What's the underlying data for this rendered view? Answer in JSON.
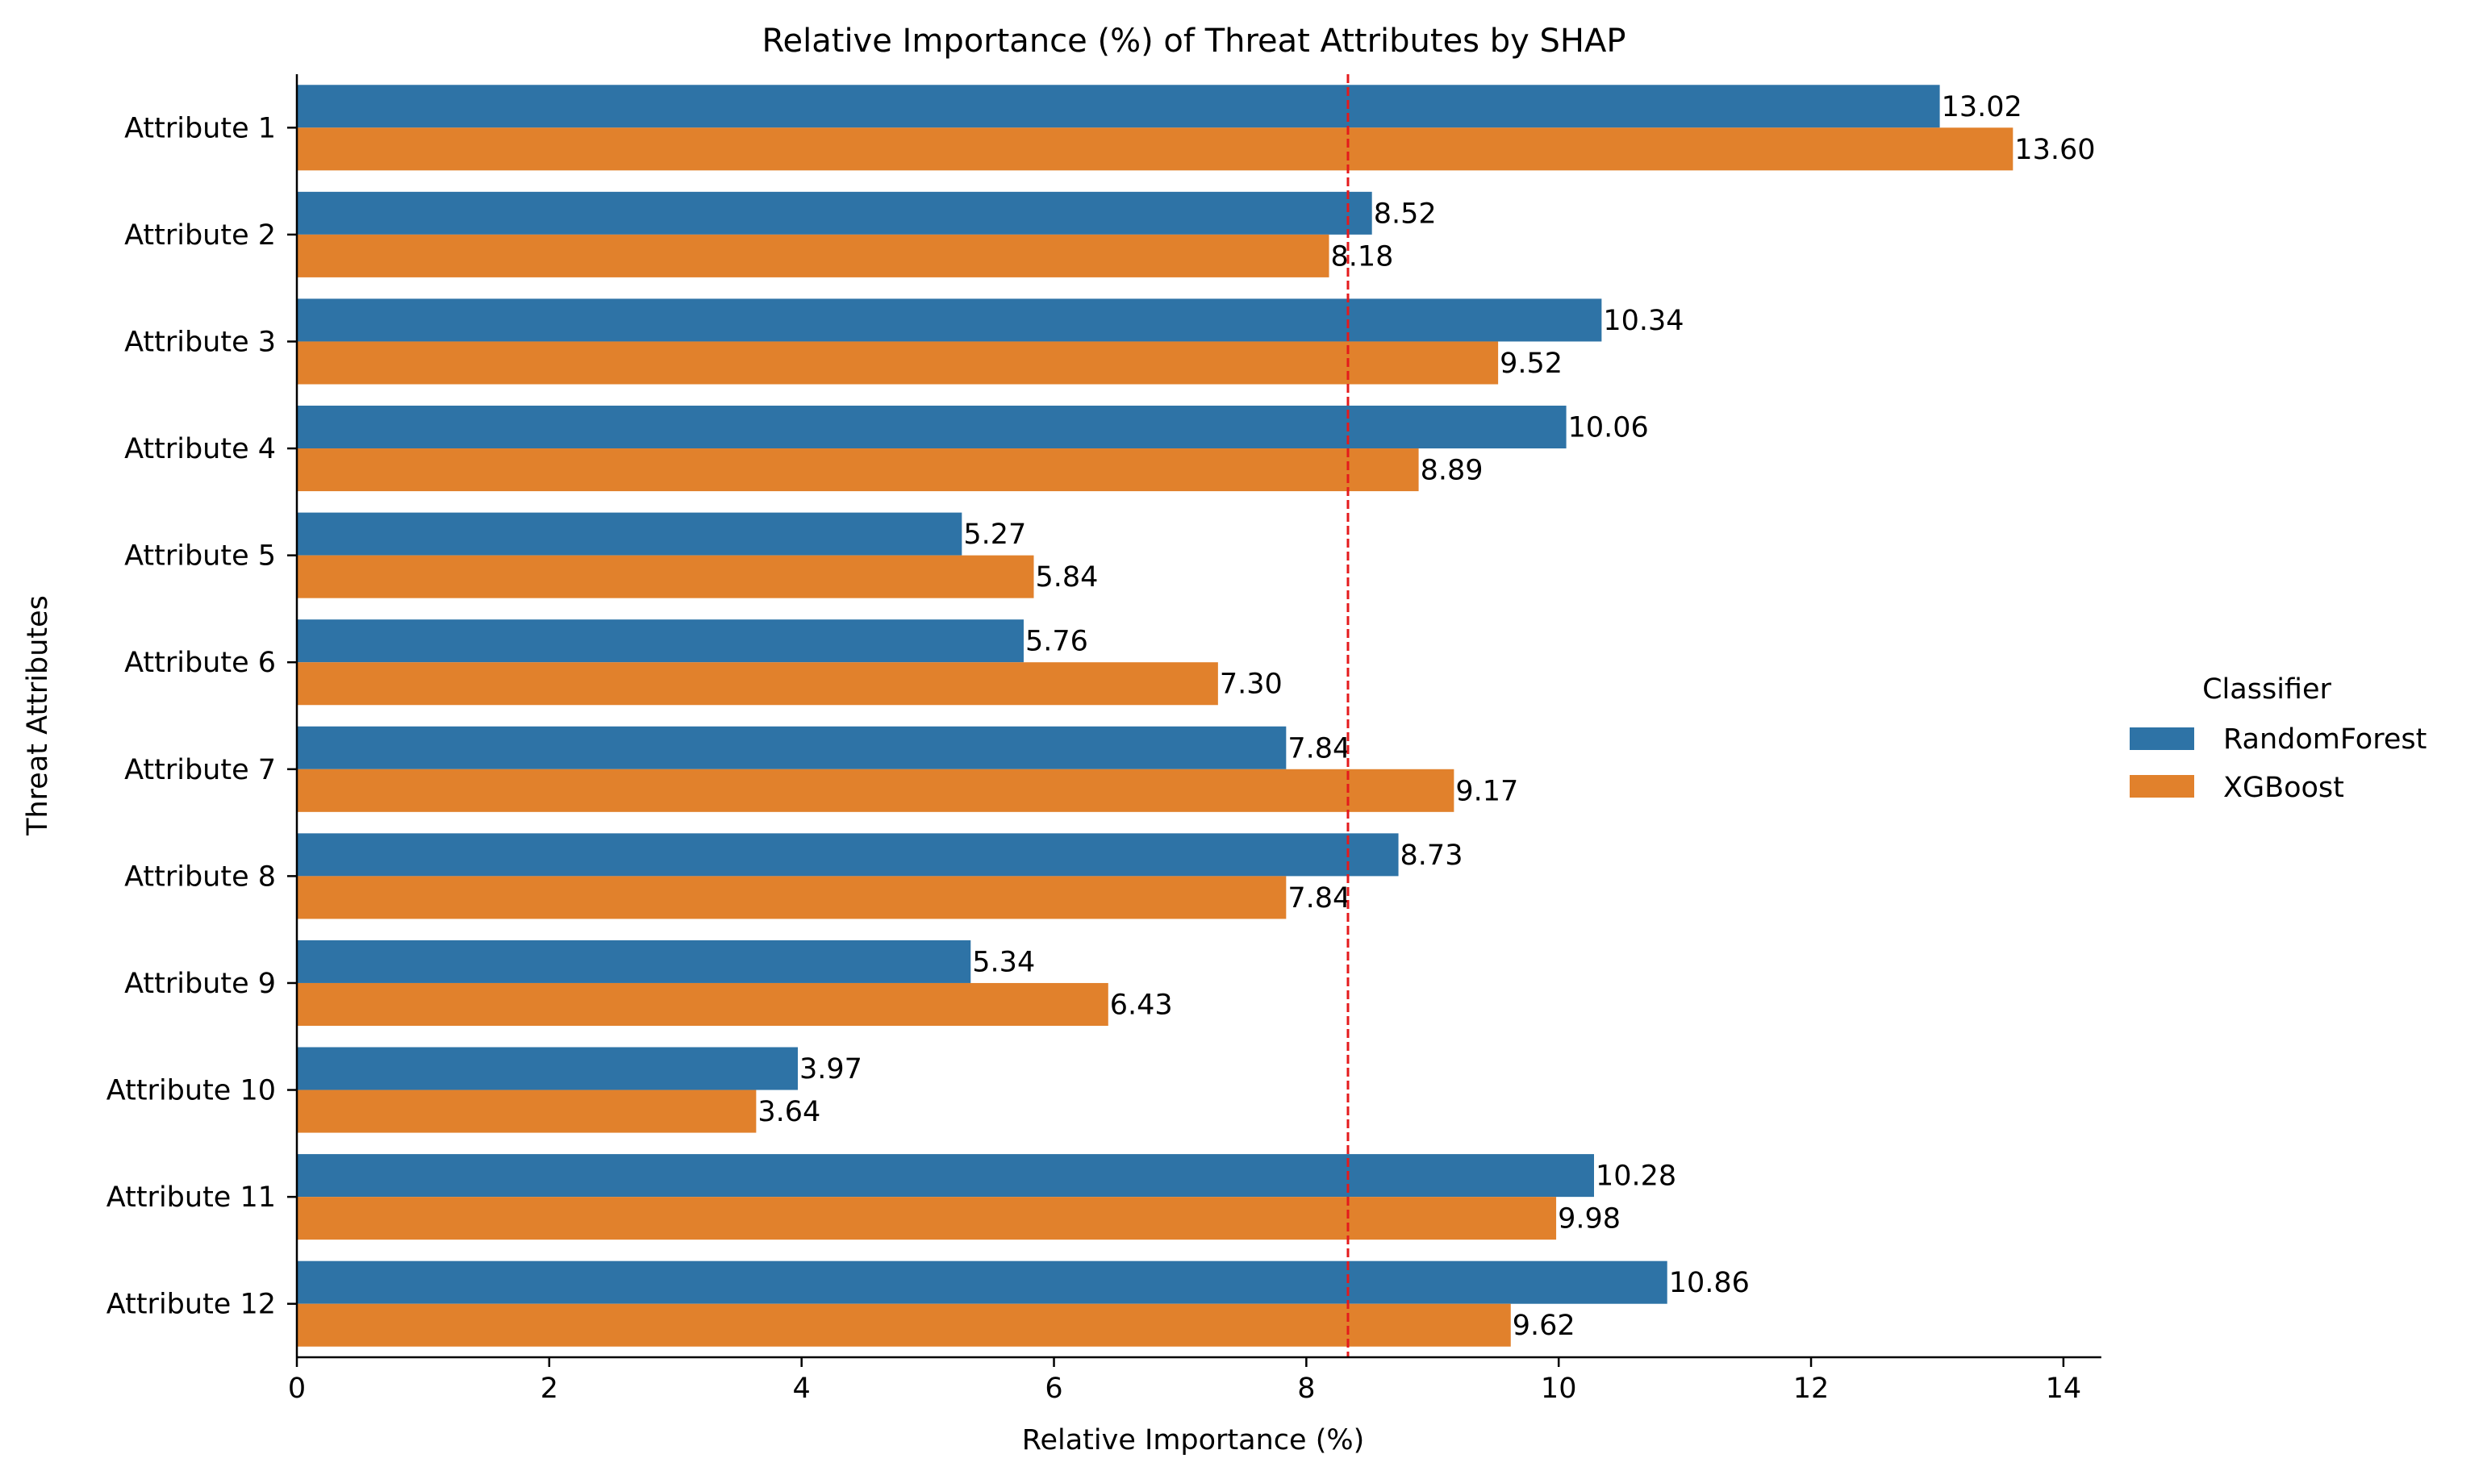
{
  "chart_data": {
    "type": "bar",
    "orientation": "horizontal",
    "title": "Relative Importance (%) of Threat Attributes by SHAP",
    "xlabel": "Relative Importance (%)",
    "ylabel": "Threat Attributes",
    "xlim": [
      0,
      14.3
    ],
    "xticks": [
      0,
      2,
      4,
      6,
      8,
      10,
      12,
      14
    ],
    "grid": false,
    "categories": [
      "Attribute 1",
      "Attribute 2",
      "Attribute 3",
      "Attribute 4",
      "Attribute 5",
      "Attribute 6",
      "Attribute 7",
      "Attribute 8",
      "Attribute 9",
      "Attribute 10",
      "Attribute 11",
      "Attribute 12"
    ],
    "series": [
      {
        "name": "RandomForest",
        "color": "#2e73a6",
        "values": [
          13.02,
          8.52,
          10.34,
          10.06,
          5.27,
          5.76,
          7.84,
          8.73,
          5.34,
          3.97,
          10.28,
          10.86
        ]
      },
      {
        "name": "XGBoost",
        "color": "#e1812c",
        "values": [
          13.6,
          8.18,
          9.52,
          8.89,
          5.84,
          7.3,
          9.17,
          7.84,
          6.43,
          3.64,
          9.98,
          9.62
        ]
      }
    ],
    "reference_line": {
      "value": 8.33,
      "color": "#e41a1c",
      "style": "dashed"
    },
    "legend": {
      "title": "Classifier",
      "placement": "right"
    }
  }
}
